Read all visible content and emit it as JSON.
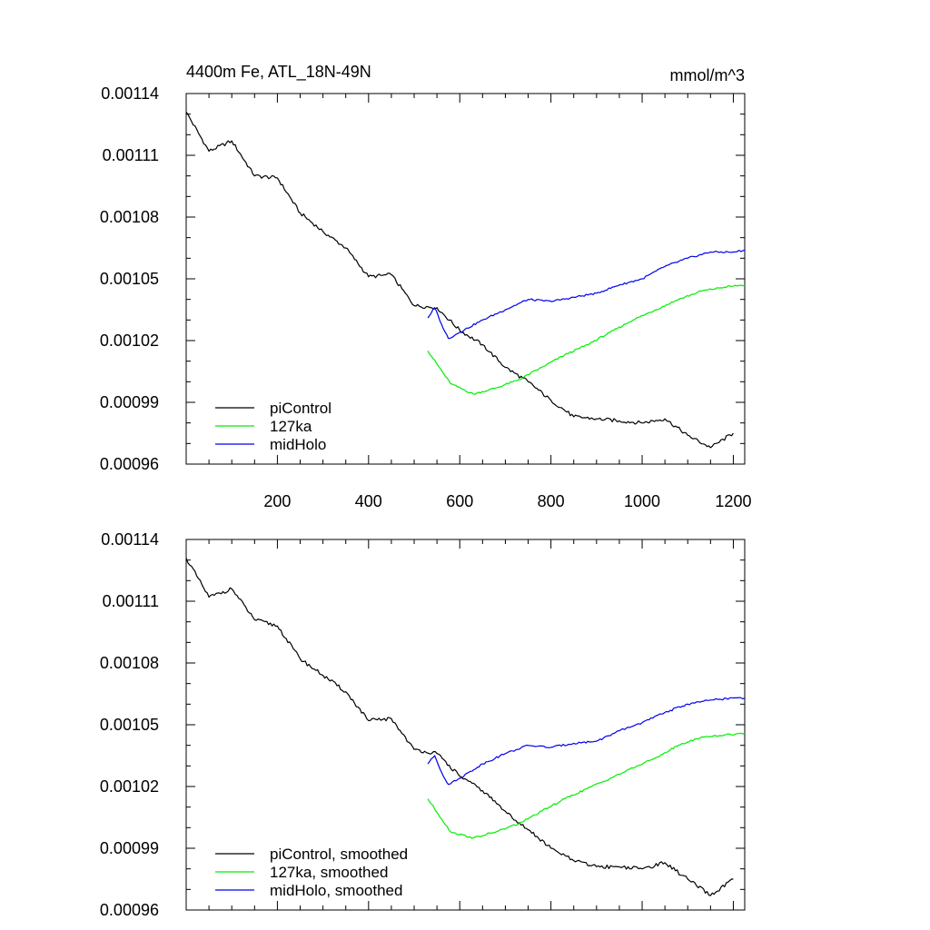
{
  "chart_data": [
    {
      "type": "line",
      "title": "4400m Fe, ATL_18N-49N",
      "units": "mmol/m^3",
      "xlim": [
        0,
        1225
      ],
      "ylim": [
        0.00096,
        0.00114
      ],
      "xticks": [
        200,
        400,
        600,
        800,
        1000,
        1200
      ],
      "xtick_labels": [
        "200",
        "400",
        "600",
        "800",
        "1000",
        "1200"
      ],
      "yticks": [
        0.00096,
        0.00099,
        0.00102,
        0.00105,
        0.00108,
        0.00111,
        0.00114
      ],
      "ytick_labels": [
        "0.00096",
        "0.00099",
        "0.00102",
        "0.00105",
        "0.00108",
        "0.00111",
        "0.00114"
      ],
      "legend_position": "bottom-left",
      "series": [
        {
          "name": "piControl",
          "color": "#000000",
          "x": [
            0,
            50,
            100,
            150,
            200,
            250,
            300,
            350,
            400,
            450,
            500,
            550,
            600,
            650,
            700,
            750,
            800,
            850,
            900,
            950,
            1000,
            1050,
            1100,
            1150,
            1200
          ],
          "y": [
            0.001131,
            0.001112,
            0.001117,
            0.0011,
            0.001099,
            0.001082,
            0.001073,
            0.001065,
            0.001051,
            0.001052,
            0.001037,
            0.001036,
            0.001025,
            0.001018,
            0.001007,
            0.001,
            0.000991,
            0.000983,
            0.000982,
            0.000981,
            0.00098,
            0.000982,
            0.000974,
            0.000968,
            0.000975
          ]
        },
        {
          "name": "127ka",
          "color": "#00ee00",
          "x": [
            530,
            580,
            630,
            680,
            730,
            780,
            830,
            880,
            930,
            980,
            1030,
            1080,
            1130,
            1180,
            1225
          ],
          "y": [
            0.001015,
            0.000999,
            0.000994,
            0.000997,
            0.001001,
            0.001007,
            0.001013,
            0.001018,
            0.001024,
            0.00103,
            0.001035,
            0.00104,
            0.001044,
            0.001046,
            0.001047
          ]
        },
        {
          "name": "midHolo",
          "color": "#0000ee",
          "x": [
            530,
            545,
            560,
            575,
            600,
            650,
            700,
            750,
            800,
            850,
            900,
            950,
            1000,
            1050,
            1100,
            1150,
            1200,
            1225
          ],
          "y": [
            0.001031,
            0.001036,
            0.001028,
            0.001021,
            0.001024,
            0.00103,
            0.001035,
            0.00104,
            0.001039,
            0.001041,
            0.001043,
            0.001047,
            0.00105,
            0.001056,
            0.00106,
            0.001063,
            0.001063,
            0.001064
          ]
        }
      ]
    },
    {
      "type": "line",
      "title": "",
      "units": "",
      "xlim": [
        0,
        1225
      ],
      "ylim": [
        0.00096,
        0.00114
      ],
      "yticks": [
        0.00096,
        0.00099,
        0.00102,
        0.00105,
        0.00108,
        0.00111,
        0.00114
      ],
      "ytick_labels": [
        "0.00096",
        "0.00099",
        "0.00102",
        "0.00105",
        "0.00108",
        "0.00111",
        "0.00114"
      ],
      "legend_position": "bottom-left",
      "series": [
        {
          "name": "piControl, smoothed",
          "color": "#000000",
          "x": [
            0,
            50,
            100,
            150,
            200,
            250,
            300,
            350,
            400,
            450,
            500,
            550,
            600,
            650,
            700,
            750,
            800,
            850,
            900,
            950,
            1000,
            1050,
            1100,
            1150,
            1200
          ],
          "y": [
            0.001131,
            0.001112,
            0.001116,
            0.001101,
            0.001098,
            0.001082,
            0.001074,
            0.001066,
            0.001052,
            0.001053,
            0.001038,
            0.001036,
            0.001025,
            0.001018,
            0.001008,
            0.000999,
            0.00099,
            0.000984,
            0.000981,
            0.000981,
            0.00098,
            0.000983,
            0.000975,
            0.000967,
            0.000975
          ]
        },
        {
          "name": "127ka, smoothed",
          "color": "#00ee00",
          "x": [
            530,
            580,
            630,
            680,
            730,
            780,
            830,
            880,
            930,
            980,
            1030,
            1080,
            1130,
            1180,
            1225
          ],
          "y": [
            0.001014,
            0.000998,
            0.000995,
            0.000998,
            0.001002,
            0.001008,
            0.001014,
            0.001019,
            0.001024,
            0.001029,
            0.001034,
            0.00104,
            0.001044,
            0.001045,
            0.001046
          ]
        },
        {
          "name": "midHolo, smoothed",
          "color": "#0000ee",
          "x": [
            530,
            545,
            560,
            575,
            600,
            650,
            700,
            750,
            800,
            850,
            900,
            950,
            1000,
            1050,
            1100,
            1150,
            1200,
            1225
          ],
          "y": [
            0.001031,
            0.001035,
            0.001027,
            0.001021,
            0.001024,
            0.001031,
            0.001036,
            0.00104,
            0.001039,
            0.001041,
            0.001042,
            0.001047,
            0.001051,
            0.001056,
            0.00106,
            0.001062,
            0.001063,
            0.001063
          ]
        }
      ]
    }
  ]
}
